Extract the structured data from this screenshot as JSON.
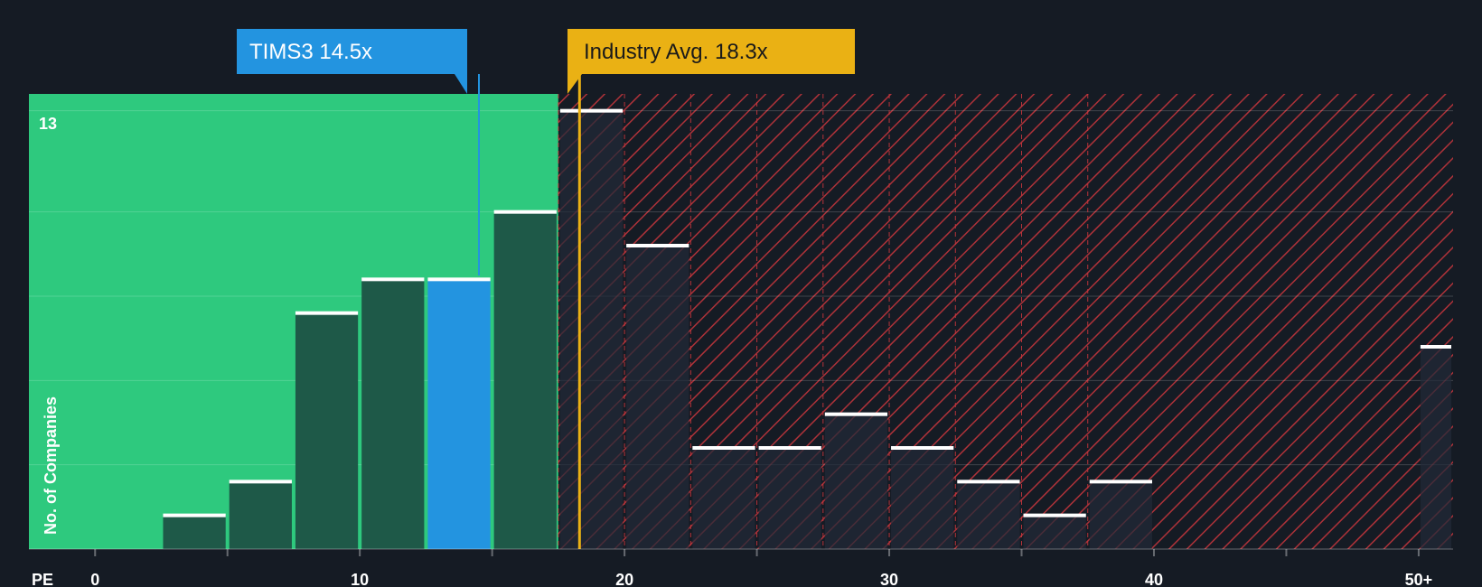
{
  "chart_data": {
    "type": "bar",
    "title": "",
    "xlabel": "PE",
    "ylabel": "No. of Companies",
    "xlim": [
      -2.5,
      51.3
    ],
    "ylim": [
      0,
      13.5
    ],
    "y_top_label": "13",
    "x_ticks": [
      {
        "value": 0,
        "label": "0"
      },
      {
        "value": 10,
        "label": "10"
      },
      {
        "value": 20,
        "label": "20"
      },
      {
        "value": 30,
        "label": "30"
      },
      {
        "value": 40,
        "label": "40"
      },
      {
        "value": 50,
        "label": "50+"
      }
    ],
    "bins": [
      {
        "x0": 2.5,
        "x1": 5.0,
        "value": 1
      },
      {
        "x0": 5.0,
        "x1": 7.5,
        "value": 2
      },
      {
        "x0": 7.5,
        "x1": 10.0,
        "value": 7
      },
      {
        "x0": 10.0,
        "x1": 12.5,
        "value": 8
      },
      {
        "x0": 12.5,
        "x1": 15.0,
        "value": 8,
        "highlight": true
      },
      {
        "x0": 15.0,
        "x1": 17.5,
        "value": 10
      },
      {
        "x0": 17.5,
        "x1": 20.0,
        "value": 13
      },
      {
        "x0": 20.0,
        "x1": 22.5,
        "value": 9
      },
      {
        "x0": 22.5,
        "x1": 25.0,
        "value": 3
      },
      {
        "x0": 25.0,
        "x1": 27.5,
        "value": 3
      },
      {
        "x0": 27.5,
        "x1": 30.0,
        "value": 4
      },
      {
        "x0": 30.0,
        "x1": 32.5,
        "value": 3
      },
      {
        "x0": 32.5,
        "x1": 35.0,
        "value": 2
      },
      {
        "x0": 35.0,
        "x1": 37.5,
        "value": 1
      },
      {
        "x0": 37.5,
        "x1": 40.0,
        "value": 2
      },
      {
        "x0": 50.0,
        "x1": 51.3,
        "value": 6
      }
    ],
    "fair_threshold": 17.5,
    "company": {
      "name": "TIMS3",
      "value": 14.5,
      "label": "TIMS3 14.5x"
    },
    "industry": {
      "value": 18.3,
      "label": "Industry Avg. 18.3x"
    },
    "colors": {
      "background": "#151b24",
      "green_zone": "#2ec97e",
      "bar_green_dark": "#1e5948",
      "bar_dark": "#232a38",
      "highlight": "#2394e0",
      "red_hatch": "#c9363d",
      "industry": "#eab114",
      "cap": "#ffffff"
    }
  }
}
